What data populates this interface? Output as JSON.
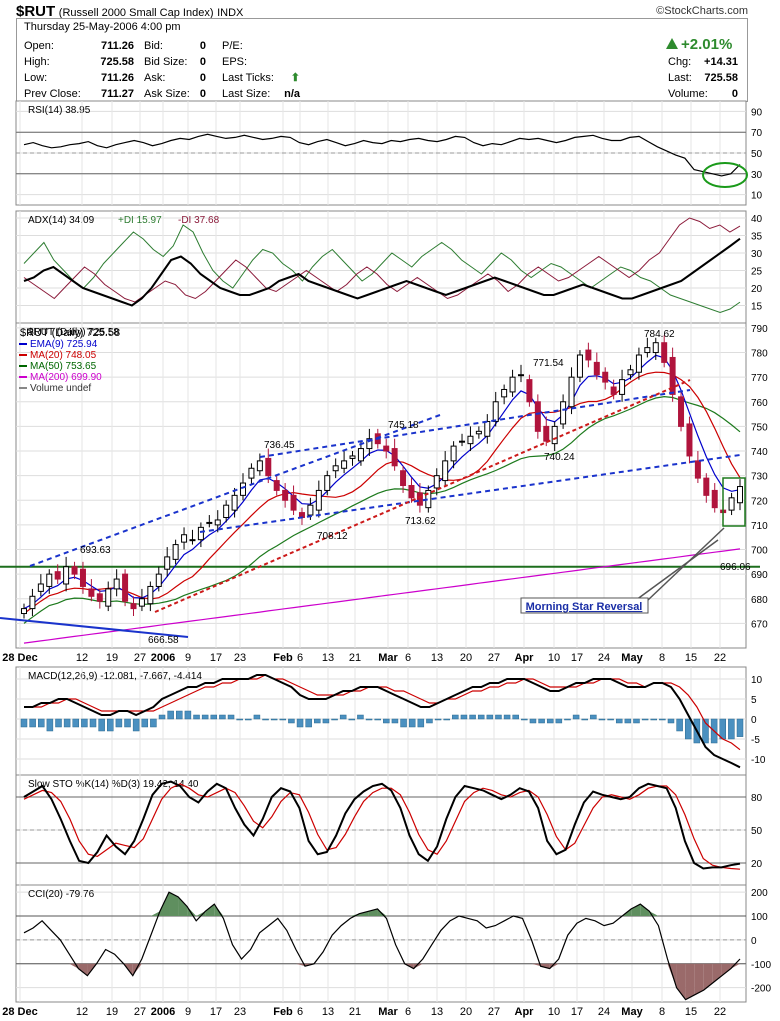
{
  "header": {
    "symbol": "$RUT",
    "name": "(Russell 2000 Small Cap Index)",
    "exchange": "INDX",
    "brand": "©StockCharts.com",
    "datetime": "Thursday  25-May-2006  4:00 pm",
    "change_pct": "+2.01%",
    "quote_left": [
      {
        "label": "Open:",
        "value": "711.26"
      },
      {
        "label": "High:",
        "value": "725.58"
      },
      {
        "label": "Low:",
        "value": "711.26"
      },
      {
        "label": "Prev Close:",
        "value": "711.27"
      }
    ],
    "quote_mid": [
      {
        "label": "Bid:",
        "value": "0"
      },
      {
        "label": "Bid Size:",
        "value": "0"
      },
      {
        "label": "Ask:",
        "value": "0"
      },
      {
        "label": "Ask Size:",
        "value": "0"
      }
    ],
    "quote_right": [
      {
        "label": "P/E:",
        "value": ""
      },
      {
        "label": "EPS:",
        "value": ""
      },
      {
        "label": "Last Ticks:",
        "value": ""
      },
      {
        "label": "Last Size:",
        "value": "n/a"
      }
    ],
    "quote_far": [
      {
        "label": "Chg:",
        "value": "+14.31"
      },
      {
        "label": "Last:",
        "value": "725.58"
      },
      {
        "label": "Volume:",
        "value": "0"
      }
    ],
    "up_color": "#2e8b2e"
  },
  "chart_data": [
    {
      "type": "line",
      "panel": "RSI",
      "title": "RSI(14) 38.95",
      "ylim": [
        0,
        100
      ],
      "yticks": [
        10,
        30,
        50,
        70,
        90
      ],
      "series": [
        {
          "name": "RSI(14)",
          "values": [
            58,
            60,
            57,
            55,
            56,
            58,
            59,
            61,
            57,
            55,
            58,
            60,
            62,
            60,
            57,
            59,
            62,
            64,
            63,
            66,
            68,
            66,
            64,
            65,
            67,
            65,
            63,
            64,
            66,
            65,
            60,
            58,
            61,
            63,
            60,
            57,
            59,
            62,
            60,
            59,
            62,
            61,
            63,
            64,
            62,
            61,
            63,
            66,
            65,
            60,
            57,
            59,
            58,
            61,
            64,
            63,
            64,
            62,
            60,
            62,
            65,
            66,
            67,
            64,
            62,
            62,
            65,
            66,
            61,
            56,
            52,
            48,
            45,
            34,
            32,
            30,
            28,
            30,
            38.95
          ]
        }
      ],
      "annotations": [
        "oversold-circle"
      ]
    },
    {
      "type": "line",
      "panel": "ADX",
      "title": "ADX(14) 34.09",
      "legend": [
        "+DI 15.97",
        "-DI 37.68"
      ],
      "ylim": [
        10,
        42
      ],
      "yticks": [
        15,
        20,
        25,
        30,
        35,
        40
      ],
      "series": [
        {
          "name": "ADX(14)",
          "color": "#000000",
          "values": [
            22,
            23,
            25,
            26,
            24,
            22,
            20,
            19,
            18,
            17,
            16,
            15,
            17,
            20,
            24,
            28,
            29,
            27,
            24,
            22,
            20,
            19,
            18,
            18,
            19,
            20,
            22,
            23,
            24,
            22,
            21,
            20,
            19,
            18,
            17,
            18,
            19,
            20,
            21,
            22,
            21,
            20,
            19,
            18,
            19,
            20,
            21,
            22,
            23,
            22,
            21,
            20,
            19,
            18,
            18,
            19,
            20,
            21,
            20,
            19,
            18,
            17,
            17,
            18,
            19,
            20,
            21,
            22,
            24,
            26,
            28,
            30,
            32,
            34.09
          ]
        },
        {
          "name": "+DI",
          "color": "#2e7d32",
          "values": [
            27,
            30,
            33,
            28,
            25,
            22,
            20,
            23,
            27,
            30,
            33,
            36,
            34,
            31,
            29,
            32,
            38,
            36,
            30,
            25,
            22,
            20,
            24,
            28,
            31,
            30,
            27,
            25,
            22,
            26,
            29,
            31,
            28,
            25,
            22,
            24,
            27,
            30,
            28,
            26,
            29,
            31,
            33,
            31,
            28,
            26,
            24,
            27,
            30,
            28,
            25,
            23,
            25,
            27,
            26,
            24,
            22,
            20,
            22,
            24,
            26,
            25,
            23,
            22,
            20,
            18,
            17,
            16,
            15,
            14,
            13,
            14,
            15.97
          ]
        },
        {
          "name": "-DI",
          "color": "#8b1a3a",
          "values": [
            23,
            21,
            19,
            17,
            20,
            23,
            26,
            24,
            21,
            19,
            17,
            16,
            18,
            20,
            22,
            21,
            18,
            17,
            19,
            22,
            25,
            28,
            26,
            23,
            20,
            19,
            21,
            23,
            25,
            23,
            21,
            19,
            21,
            24,
            26,
            24,
            21,
            19,
            21,
            23,
            21,
            19,
            17,
            18,
            20,
            22,
            24,
            22,
            19,
            21,
            24,
            26,
            24,
            22,
            23,
            25,
            27,
            29,
            27,
            25,
            23,
            25,
            28,
            30,
            34,
            38,
            40,
            39,
            37,
            38,
            36,
            37.68
          ]
        }
      ]
    },
    {
      "type": "candlestick",
      "panel": "Price",
      "title": "$RUT (Daily) 725.58",
      "legend": [
        {
          "label": "EMA(9) 725.94",
          "color": "#0000cc"
        },
        {
          "label": "MA(20) 748.05",
          "color": "#cc0000"
        },
        {
          "label": "MA(50) 753.65",
          "color": "#006600"
        },
        {
          "label": "MA(200) 699.90",
          "color": "#cc00cc"
        },
        {
          "label": "Volume undef",
          "color": "#888888"
        }
      ],
      "ylim": [
        660,
        792
      ],
      "yticks": [
        670,
        680,
        690,
        700,
        710,
        720,
        730,
        740,
        750,
        760,
        770,
        780,
        790
      ],
      "x_labels": [
        "28 Dec",
        "12",
        "19",
        "27",
        "2006",
        "9",
        "17",
        "23",
        "Feb",
        "6",
        "13",
        "21",
        "Mar",
        "6",
        "13",
        "20",
        "27",
        "Apr",
        "10",
        "17",
        "24",
        "May",
        "8",
        "15",
        "22"
      ],
      "close": [
        676,
        681,
        686,
        690,
        688,
        693,
        690,
        685,
        681,
        679,
        684,
        688,
        679,
        676,
        680,
        685,
        690,
        697,
        702,
        706,
        704,
        709,
        711,
        712,
        718,
        722,
        727,
        733,
        736,
        730,
        724,
        720,
        716,
        713,
        718,
        724,
        730,
        734,
        736,
        738,
        741,
        745,
        743,
        740,
        734,
        726,
        721,
        718,
        724,
        730,
        736,
        742,
        744,
        746,
        748,
        752,
        760,
        765,
        770,
        771,
        760,
        748,
        744,
        750,
        760,
        770,
        779,
        777,
        771,
        768,
        763,
        769,
        773,
        779,
        782,
        784,
        776,
        763,
        750,
        738,
        729,
        722,
        717,
        715,
        721,
        725.58
      ],
      "price_labels": [
        {
          "text": "693.63",
          "value": 693.63
        },
        {
          "text": "666.58",
          "value": 666.58
        },
        {
          "text": "736.45",
          "value": 736.45
        },
        {
          "text": "745.18",
          "value": 745.18
        },
        {
          "text": "708.12",
          "value": 708.12
        },
        {
          "text": "713.62",
          "value": 713.62
        },
        {
          "text": "771.54",
          "value": 771.54
        },
        {
          "text": "740.24",
          "value": 740.24
        },
        {
          "text": "784.62",
          "value": 784.62
        },
        {
          "text": "696.06",
          "value": 696.06
        }
      ],
      "horizontal_line": 693,
      "annotation": "Morning Star Reversal"
    },
    {
      "type": "line",
      "panel": "MACD",
      "title": "MACD(12,26,9) -12.081, -7.667, -4.414",
      "ylim": [
        -14,
        13
      ],
      "yticks": [
        -10,
        -5,
        0,
        5,
        10
      ],
      "series": [
        {
          "name": "MACD",
          "color": "#000000",
          "values": [
            3,
            3,
            4,
            4,
            5,
            5,
            4,
            3,
            2,
            1,
            1,
            2,
            2,
            1,
            2,
            3,
            5,
            6,
            7,
            8,
            8,
            9,
            9,
            10,
            10,
            10,
            10,
            11,
            11,
            10,
            9,
            8,
            6,
            5,
            5,
            5,
            6,
            7,
            7,
            8,
            8,
            8,
            7,
            6,
            5,
            4,
            3,
            3,
            4,
            5,
            6,
            7,
            8,
            8,
            9,
            9,
            10,
            10,
            10,
            9,
            8,
            7,
            7,
            8,
            9,
            9,
            10,
            10,
            10,
            9,
            8,
            8,
            8,
            9,
            9,
            8,
            5,
            1,
            -3,
            -7,
            -9,
            -10,
            -11,
            -12.081
          ]
        },
        {
          "name": "Signal",
          "color": "#cc0000",
          "values": [
            3,
            3,
            3,
            4,
            4,
            5,
            5,
            4,
            3,
            2,
            2,
            2,
            2,
            2,
            2,
            2,
            3,
            4,
            5,
            6,
            7,
            8,
            8,
            9,
            9,
            10,
            10,
            10,
            11,
            10,
            10,
            9,
            8,
            7,
            6,
            6,
            6,
            6,
            7,
            7,
            8,
            8,
            8,
            7,
            7,
            6,
            5,
            4,
            4,
            5,
            5,
            6,
            7,
            7,
            8,
            8,
            9,
            9,
            10,
            10,
            9,
            8,
            8,
            8,
            8,
            9,
            9,
            10,
            10,
            10,
            9,
            9,
            8,
            9,
            9,
            9,
            8,
            6,
            3,
            -1,
            -3,
            -5,
            -6,
            -7.667
          ]
        },
        {
          "name": "Histogram",
          "color": "#4a90c0",
          "values": [
            -2,
            -2,
            -2,
            -3,
            -2,
            -2,
            -2,
            -2,
            -2,
            -3,
            -3,
            -2,
            -2,
            -3,
            -2,
            -2,
            1,
            2,
            2,
            2,
            1,
            1,
            1,
            1,
            1,
            0,
            0,
            1,
            0,
            0,
            0,
            -1,
            -2,
            -2,
            -1,
            -1,
            0,
            1,
            0,
            1,
            0,
            0,
            -1,
            -1,
            -2,
            -2,
            -2,
            -1,
            0,
            0,
            1,
            1,
            1,
            1,
            1,
            1,
            1,
            1,
            0,
            -1,
            -1,
            -1,
            -1,
            0,
            1,
            0,
            1,
            0,
            0,
            -1,
            -1,
            -1,
            0,
            0,
            0,
            -1,
            -3,
            -5,
            -6,
            -6,
            -6,
            -5,
            -5,
            -4.414
          ]
        }
      ]
    },
    {
      "type": "line",
      "panel": "Stochastic",
      "title": "Slow STO %K(14) %D(3) 19.42, 14.40",
      "ylim": [
        0,
        100
      ],
      "yticks": [
        20,
        50,
        80
      ],
      "series": [
        {
          "name": "%K",
          "color": "#000000",
          "values": [
            80,
            85,
            90,
            78,
            60,
            40,
            22,
            20,
            30,
            45,
            35,
            28,
            40,
            60,
            82,
            92,
            94,
            90,
            80,
            75,
            85,
            92,
            88,
            70,
            55,
            45,
            60,
            80,
            88,
            85,
            70,
            40,
            28,
            30,
            45,
            65,
            78,
            85,
            90,
            92,
            86,
            70,
            45,
            28,
            22,
            35,
            60,
            80,
            90,
            88,
            86,
            82,
            78,
            82,
            88,
            85,
            70,
            40,
            28,
            32,
            55,
            75,
            85,
            82,
            80,
            78,
            80,
            88,
            92,
            90,
            88,
            70,
            40,
            20,
            15,
            16,
            16,
            18,
            19.42
          ]
        },
        {
          "name": "%D",
          "color": "#cc0000",
          "values": [
            78,
            82,
            86,
            84,
            76,
            60,
            40,
            28,
            26,
            32,
            38,
            36,
            34,
            42,
            60,
            78,
            88,
            92,
            88,
            82,
            80,
            84,
            88,
            84,
            72,
            58,
            52,
            62,
            76,
            84,
            82,
            66,
            46,
            32,
            34,
            46,
            62,
            76,
            84,
            88,
            88,
            82,
            66,
            46,
            32,
            28,
            40,
            58,
            76,
            84,
            88,
            86,
            82,
            80,
            84,
            86,
            80,
            64,
            44,
            32,
            38,
            54,
            70,
            80,
            82,
            80,
            78,
            82,
            88,
            90,
            90,
            82,
            64,
            42,
            24,
            18,
            16,
            15,
            14.4
          ]
        }
      ]
    },
    {
      "type": "area",
      "panel": "CCI",
      "title": "CCI(20) -79.76",
      "ylim": [
        -260,
        230
      ],
      "yticks": [
        -200,
        -100,
        0,
        100,
        200
      ],
      "series": [
        {
          "name": "CCI(20)",
          "values": [
            30,
            50,
            80,
            40,
            0,
            -60,
            -120,
            -150,
            -100,
            -40,
            -60,
            -100,
            -150,
            -80,
            20,
            120,
            200,
            180,
            140,
            80,
            120,
            150,
            90,
            -20,
            -80,
            -40,
            30,
            60,
            90,
            40,
            -40,
            -110,
            -100,
            -50,
            20,
            60,
            90,
            110,
            120,
            130,
            90,
            -20,
            -100,
            -120,
            -80,
            -20,
            40,
            80,
            100,
            90,
            80,
            50,
            60,
            80,
            100,
            90,
            0,
            -110,
            -120,
            -80,
            20,
            70,
            90,
            80,
            60,
            70,
            100,
            130,
            150,
            120,
            60,
            -80,
            -200,
            -250,
            -230,
            -210,
            -180,
            -150,
            -120,
            -79.76
          ]
        }
      ]
    }
  ]
}
